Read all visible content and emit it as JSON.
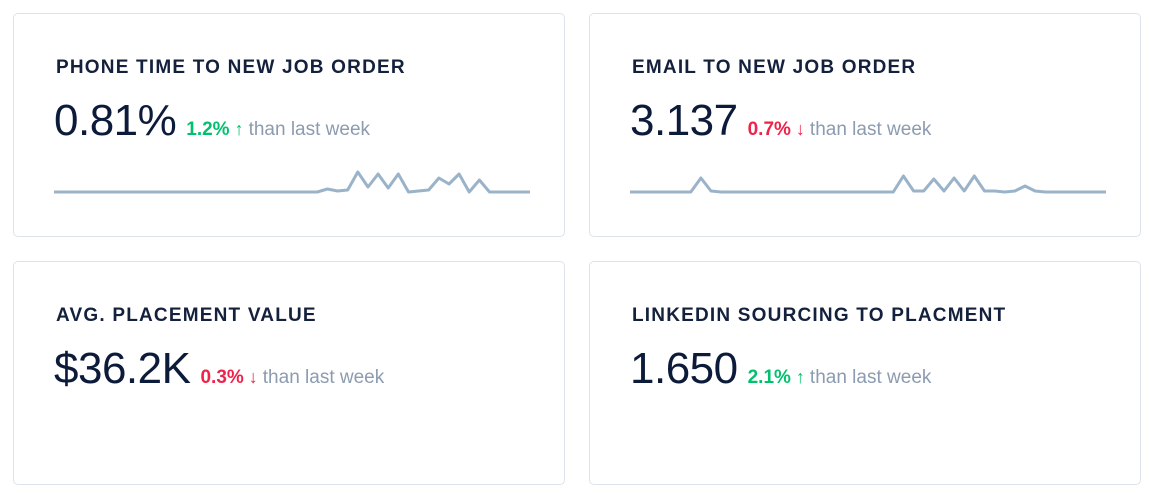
{
  "colors": {
    "text": "#0d1b3a",
    "up": "#00c16e",
    "down": "#f0224a",
    "muted": "#8c9bb0",
    "sparkline": "#9bb3c9",
    "border": "#dde3ea"
  },
  "cards": [
    {
      "title": "PHONE TIME TO NEW JOB ORDER",
      "value": "0.81%",
      "delta": "1.2%",
      "direction": "up",
      "arrow": "↑",
      "suffix": "than last week",
      "sparkline": [
        0,
        0,
        0,
        0,
        0,
        0,
        0,
        0,
        0,
        0,
        0,
        0,
        0,
        0,
        0,
        0,
        0,
        0,
        0,
        0,
        0,
        0,
        0,
        0,
        0,
        0,
        0,
        3,
        1,
        2,
        20,
        5,
        18,
        4,
        18,
        0,
        1,
        2,
        14,
        8,
        18,
        0,
        12,
        0,
        0,
        0,
        0,
        0
      ]
    },
    {
      "title": "EMAIL TO NEW JOB ORDER",
      "value": "3.137",
      "delta": "0.7%",
      "direction": "down",
      "arrow": "↓",
      "suffix": "than last week",
      "sparkline": [
        0,
        0,
        0,
        0,
        0,
        0,
        0,
        14,
        1,
        0,
        0,
        0,
        0,
        0,
        0,
        0,
        0,
        0,
        0,
        0,
        0,
        0,
        0,
        0,
        0,
        0,
        0,
        16,
        1,
        1,
        13,
        1,
        14,
        1,
        16,
        1,
        1,
        0,
        1,
        6,
        1,
        0,
        0,
        0,
        0,
        0,
        0,
        0
      ]
    },
    {
      "title": "AVG. PLACEMENT VALUE",
      "value": "$36.2K",
      "delta": "0.3%",
      "direction": "down",
      "arrow": "↓",
      "suffix": "than last week"
    },
    {
      "title": "LINKEDIN SOURCING TO PLACMENT",
      "value": "1.650",
      "delta": "2.1%",
      "direction": "up",
      "arrow": "↑",
      "suffix": "than last week"
    }
  ]
}
